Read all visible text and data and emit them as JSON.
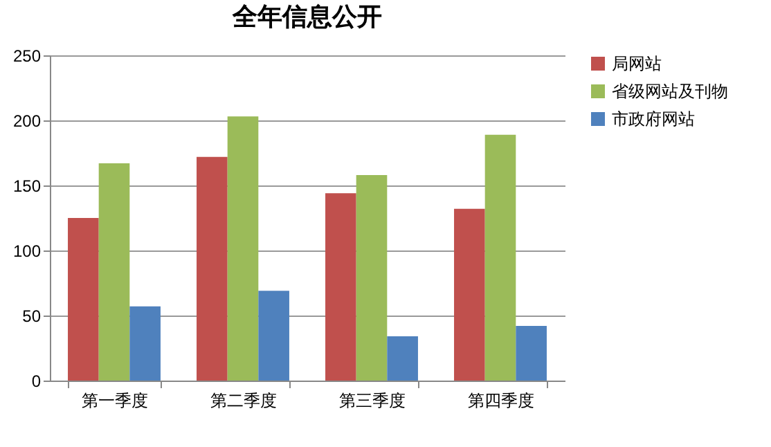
{
  "chart_data": {
    "type": "bar",
    "title": "全年信息公开",
    "categories": [
      "第一季度",
      "第二季度",
      "第三季度",
      "第四季度"
    ],
    "series": [
      {
        "name": "局网站",
        "color": "#c0504d",
        "values": [
          125,
          172,
          144,
          132
        ]
      },
      {
        "name": "省级网站及刊物",
        "color": "#9bbb59",
        "values": [
          167,
          203,
          158,
          189
        ]
      },
      {
        "name": "市政府网站",
        "color": "#4f81bd",
        "values": [
          57,
          69,
          34,
          42
        ]
      }
    ],
    "ylim": [
      0,
      250
    ],
    "yticks": [
      0,
      50,
      100,
      150,
      200,
      250
    ],
    "grid": "y",
    "legend": "right"
  }
}
